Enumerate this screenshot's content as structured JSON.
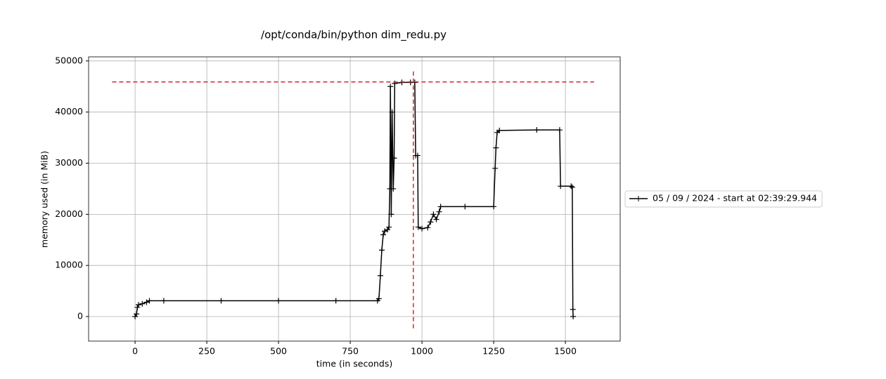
{
  "chart_data": {
    "type": "line",
    "title": "/opt/conda/bin/python dim_redu.py",
    "x_label": "time (in seconds)",
    "y_label": "memory used (in MiB)",
    "xlim": [
      -162,
      1691
    ],
    "ylim": [
      -4800,
      50800
    ],
    "xticks": [
      0,
      250,
      500,
      750,
      1000,
      1250,
      1500
    ],
    "yticks": [
      0,
      10000,
      20000,
      30000,
      40000,
      50000
    ],
    "grid": true,
    "legend_position": "right",
    "series": [
      {
        "name": "05 / 09 / 2024 - start at 02:39:29.944",
        "color": "#000000",
        "x": [
          0,
          5,
          8,
          12,
          25,
          40,
          50,
          100,
          300,
          500,
          700,
          845,
          850,
          855,
          860,
          865,
          870,
          880,
          885,
          888,
          890,
          893,
          896,
          900,
          903,
          905,
          930,
          960,
          975,
          978,
          985,
          987,
          1000,
          1020,
          1030,
          1040,
          1050,
          1060,
          1065,
          1150,
          1250,
          1255,
          1258,
          1262,
          1270,
          1400,
          1480,
          1483,
          1520,
          1524,
          1526,
          1527
        ],
        "values": [
          0,
          500,
          1800,
          2300,
          2500,
          2800,
          3100,
          3100,
          3100,
          3100,
          3100,
          3100,
          3500,
          8000,
          13000,
          16000,
          16700,
          17000,
          17500,
          25000,
          45000,
          20000,
          40000,
          25000,
          31000,
          45600,
          45800,
          45800,
          45800,
          31500,
          31500,
          17500,
          17200,
          17400,
          18500,
          20000,
          19000,
          20500,
          21500,
          21500,
          21500,
          29000,
          33000,
          36000,
          36400,
          36500,
          36500,
          25500,
          25500,
          25300,
          1400,
          0
        ]
      }
    ],
    "reference_lines": [
      {
        "orientation": "horizontal",
        "value": 45900,
        "from": -80,
        "to": 1600,
        "color": "#d62728"
      },
      {
        "orientation": "vertical",
        "value": 970,
        "from": -2300,
        "to": 48200,
        "color": "#d62728"
      }
    ]
  }
}
